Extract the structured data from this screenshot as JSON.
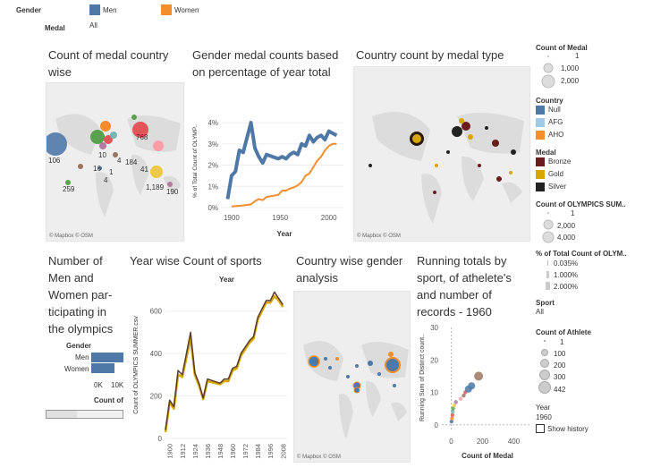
{
  "filters": {
    "gender_label": "Gender",
    "men": "Men",
    "women": "Women",
    "medal_label": "Medal",
    "medal_value": "All"
  },
  "colors": {
    "men": "#4e79a7",
    "women": "#f28e2b",
    "bronze": "#6b1d1d",
    "gold": "#d6a700",
    "silver": "#222222"
  },
  "panel1": {
    "title": "Count of medal country wise",
    "labels": [
      "768",
      "106",
      "10",
      "184",
      "16",
      "1",
      "4",
      "4",
      "41",
      "259",
      "1,189",
      "190"
    ],
    "credit": "© Mapbox © OSM"
  },
  "panel2": {
    "title": "Gender medal counts based on percentage of year total",
    "ylabel": "% of Total Count of OLYMP..",
    "xlabel": "Year",
    "yticks": [
      "4%",
      "3%",
      "2%",
      "1%",
      "0%"
    ],
    "xticks": [
      "1900",
      "1950",
      "2000"
    ]
  },
  "panel3": {
    "title": "Country count by medal type",
    "credit": "© Mapbox © OSM"
  },
  "panel4": {
    "title": "Number of Men and Women par- ticipating in the olympics",
    "gender_header": "Gender",
    "rows": [
      "Men",
      "Women"
    ],
    "axis_ticks": [
      "0K",
      "10K"
    ],
    "axis_label": "Count of"
  },
  "panel5": {
    "title": "Year wise Count of sports",
    "top_label": "Year",
    "ylabel": "Count of OLYMPICS SUMMER.csv",
    "yticks": [
      "600",
      "400",
      "200",
      "0"
    ],
    "xticks": [
      "1900",
      "1912",
      "1924",
      "1936",
      "1948",
      "1960",
      "1972",
      "1984",
      "1996",
      "2008"
    ]
  },
  "panel6": {
    "title": "Country wise gender analysis",
    "credit": "© Mapbox © OSM"
  },
  "panel7": {
    "title": "Running totals by sport, of athelete's and number of records - 1960",
    "ylabel": "Running Sum of Distinct count..",
    "xlabel": "Count of Medal",
    "yticks": [
      "30",
      "20",
      "10",
      "0"
    ],
    "xticks": [
      "0",
      "200",
      "400"
    ]
  },
  "legends": {
    "count_medal": {
      "title": "Count of Medal",
      "items": [
        "1",
        "1,000",
        "2,000"
      ]
    },
    "country": {
      "title": "Country",
      "items": [
        "Null",
        "AFG",
        "AHO"
      ]
    },
    "medal": {
      "title": "Medal",
      "items": [
        "Bronze",
        "Gold",
        "Silver"
      ]
    },
    "olympics_sum": {
      "title": "Count of OLYMPICS SUM..",
      "items": [
        "1",
        "2,000",
        "4,000"
      ]
    },
    "pct_total": {
      "title": "% of Total Count of OLYM..",
      "items": [
        "0.035%",
        "1.000%",
        "2.000%"
      ]
    },
    "sport": {
      "title": "Sport",
      "value": "All"
    },
    "athlete": {
      "title": "Count of Athlete",
      "items": [
        "1",
        "100",
        "200",
        "300",
        "442"
      ]
    },
    "year": {
      "title": "Year",
      "value": "1960"
    },
    "show_history": "Show history"
  },
  "chart_data": [
    {
      "type": "line",
      "title": "Gender medal counts based on percentage of year total",
      "xlabel": "Year",
      "ylabel": "% of Total Count of OLYMP..",
      "ylim": [
        0,
        4.3
      ],
      "xlim": [
        1890,
        2015
      ],
      "series": [
        {
          "name": "Men",
          "x": [
            1896,
            1900,
            1904,
            1908,
            1912,
            1920,
            1924,
            1928,
            1932,
            1936,
            1948,
            1952,
            1956,
            1960,
            1964,
            1968,
            1972,
            1976,
            1980,
            1984,
            1988,
            1992,
            1996,
            2000,
            2004,
            2008
          ],
          "values": [
            0.4,
            1.5,
            1.7,
            2.7,
            2.6,
            4.0,
            2.8,
            2.4,
            2.1,
            2.5,
            2.3,
            2.4,
            2.3,
            2.5,
            2.6,
            2.5,
            3.0,
            2.9,
            3.4,
            3.1,
            3.3,
            3.4,
            3.2,
            3.6,
            3.5,
            3.4
          ]
        },
        {
          "name": "Women",
          "x": [
            1900,
            1912,
            1920,
            1924,
            1928,
            1932,
            1936,
            1948,
            1952,
            1956,
            1960,
            1964,
            1968,
            1972,
            1976,
            1980,
            1984,
            1988,
            1992,
            1996,
            2000,
            2004,
            2008
          ],
          "values": [
            0.05,
            0.1,
            0.15,
            0.3,
            0.4,
            0.35,
            0.5,
            0.6,
            0.8,
            0.8,
            0.9,
            0.95,
            1.05,
            1.2,
            1.5,
            1.6,
            1.9,
            2.2,
            2.4,
            2.7,
            2.9,
            3.0,
            3.0
          ]
        }
      ]
    },
    {
      "type": "line",
      "title": "Year wise Count of sports",
      "xlabel": "",
      "ylabel": "Count of OLYMPICS SUMMER.csv",
      "ylim": [
        0,
        700
      ],
      "xlim": [
        1896,
        2012
      ],
      "series": [
        {
          "name": "",
          "x": [
            1896,
            1900,
            1904,
            1908,
            1912,
            1920,
            1924,
            1928,
            1932,
            1936,
            1948,
            1952,
            1956,
            1960,
            1964,
            1968,
            1972,
            1976,
            1980,
            1984,
            1988,
            1992,
            1996,
            2000,
            2004,
            2008
          ],
          "values": [
            40,
            180,
            150,
            320,
            300,
            500,
            310,
            260,
            190,
            280,
            260,
            280,
            280,
            330,
            340,
            400,
            430,
            460,
            480,
            570,
            610,
            650,
            650,
            690,
            660,
            630
          ]
        },
        {
          "name": "",
          "x": [
            1896,
            1900,
            1904,
            1908,
            1912,
            1920,
            1924,
            1928,
            1932,
            1936,
            1948,
            1952,
            1956,
            1960,
            1964,
            1968,
            1972,
            1976,
            1980,
            1984,
            1988,
            1992,
            1996,
            2000,
            2004,
            2008
          ],
          "values": [
            30,
            170,
            140,
            300,
            290,
            470,
            300,
            250,
            185,
            270,
            255,
            270,
            270,
            320,
            330,
            390,
            420,
            450,
            470,
            560,
            600,
            640,
            640,
            670,
            650,
            620
          ]
        }
      ]
    },
    {
      "type": "scatter",
      "title": "Running totals by sport, of athelete's and number of records - 1960",
      "xlabel": "Count of Medal",
      "ylabel": "Running Sum of Distinct count..",
      "xlim": [
        -60,
        500
      ],
      "ylim": [
        -2,
        30
      ],
      "points": [
        {
          "x": 2,
          "y": 1
        },
        {
          "x": 5,
          "y": 2
        },
        {
          "x": 8,
          "y": 3
        },
        {
          "x": 10,
          "y": 4
        },
        {
          "x": 12,
          "y": 5
        },
        {
          "x": 20,
          "y": 6
        },
        {
          "x": 30,
          "y": 7
        },
        {
          "x": 60,
          "y": 8
        },
        {
          "x": 80,
          "y": 9
        },
        {
          "x": 90,
          "y": 10
        },
        {
          "x": 110,
          "y": 11
        },
        {
          "x": 130,
          "y": 12
        },
        {
          "x": 175,
          "y": 15
        }
      ]
    }
  ]
}
